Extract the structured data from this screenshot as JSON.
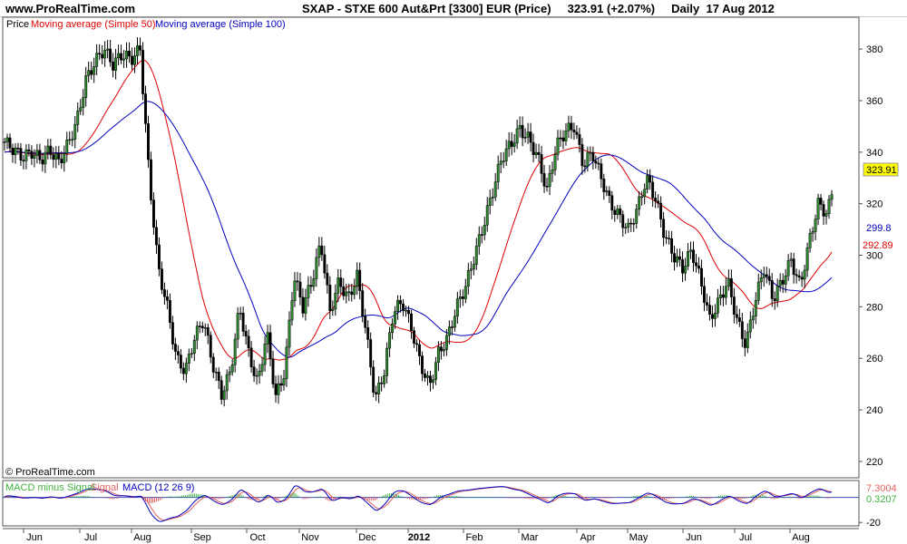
{
  "header": {
    "site": "www.ProRealTime.com",
    "title": "SXAP - STXE 600 Aut&Prt [3300] EUR (Price)",
    "price": "323.91",
    "change": "(+2.07%)",
    "period": "Daily",
    "date": "17 Aug 2012"
  },
  "copyright": "© ProRealTime.com",
  "chart_data": [
    {
      "type": "line",
      "legend": [
        {
          "name": "Price",
          "color": "#000000"
        },
        {
          "name": "Moving average (Simple 50)",
          "color": "#e00000"
        },
        {
          "name": "Moving average (Simple 100)",
          "color": "#0000c0"
        }
      ],
      "y_ticks": [
        220,
        240,
        260,
        280,
        300,
        320,
        340,
        360,
        380
      ],
      "ylim": [
        214,
        392
      ],
      "x_labels": [
        "Jun",
        "Jul",
        "Aug",
        "Sep",
        "Oct",
        "Nov",
        "Dec",
        "2012",
        "Feb",
        "Mar",
        "Apr",
        "May",
        "Jun",
        "Jul",
        "Aug"
      ],
      "price_series": {
        "name": "Price",
        "x": [
          0,
          10,
          20,
          30,
          40,
          50,
          60,
          70,
          80,
          90,
          100,
          110,
          120,
          130,
          140,
          150,
          160,
          170,
          180,
          190,
          200,
          210,
          220,
          230,
          240,
          250,
          260,
          270,
          280,
          290,
          300,
          310,
          320,
          330,
          340,
          350,
          360,
          370,
          380,
          390,
          400,
          410,
          420,
          430,
          440,
          450,
          460,
          470,
          480,
          490,
          500,
          510,
          520,
          530,
          540,
          550,
          560,
          570,
          580,
          590,
          600,
          610,
          620,
          630,
          640,
          650,
          660,
          670,
          680,
          690,
          700,
          710,
          720,
          730,
          740,
          750,
          760,
          770,
          780,
          790,
          800,
          810,
          820,
          830,
          840,
          850,
          860,
          870,
          880,
          890,
          900,
          910,
          915
        ],
        "y": [
          344,
          341,
          338,
          340,
          337,
          341,
          336,
          343,
          352,
          368,
          375,
          380,
          374,
          378,
          376,
          380,
          330,
          295,
          280,
          260,
          255,
          268,
          275,
          258,
          246,
          255,
          280,
          262,
          250,
          270,
          245,
          255,
          292,
          280,
          290,
          305,
          278,
          290,
          283,
          292,
          270,
          244,
          255,
          278,
          282,
          272,
          258,
          249,
          262,
          268,
          280,
          288,
          300,
          312,
          325,
          338,
          343,
          349,
          345,
          338,
          325,
          342,
          348,
          350,
          335,
          340,
          330,
          320,
          315,
          310,
          318,
          330,
          322,
          308,
          300,
          295,
          302,
          290,
          275,
          282,
          290,
          275,
          265,
          282,
          295,
          283,
          290,
          298,
          288,
          305,
          320,
          316,
          323.91
        ]
      },
      "ma50_last": 292.89,
      "ma100_last": 299.8,
      "last_price": 323.91,
      "price_label_color": "#ffff00",
      "ma50_color": "#e00000",
      "ma100_color": "#0000c0"
    },
    {
      "type": "line",
      "legend": [
        {
          "name": "MACD minus Signal",
          "color": "#40c040"
        },
        {
          "name": "Signal",
          "color": "#e06060"
        },
        {
          "name": "MACD (12 26 9)",
          "color": "#0000c0"
        }
      ],
      "y_ticks": [
        -20
      ],
      "ylim": [
        -22,
        12
      ],
      "value_labels": [
        "7.3004",
        "0.3207"
      ],
      "macd_last": 7.3004,
      "hist_last": 0.3207
    }
  ]
}
